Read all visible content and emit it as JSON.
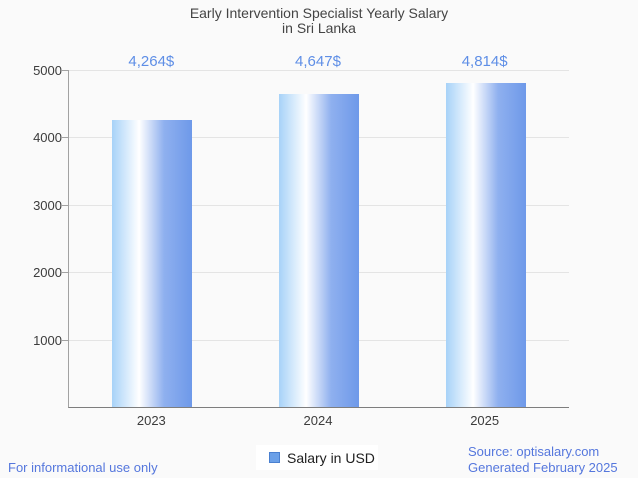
{
  "title": {
    "line1": "Early Intervention Specialist Yearly Salary",
    "line2": "in Sri Lanka"
  },
  "chart_data": {
    "type": "bar",
    "title": "Early Intervention Specialist Yearly Salary in Sri Lanka",
    "categories": [
      "2023",
      "2024",
      "2025"
    ],
    "values": [
      4264,
      4647,
      4814
    ],
    "value_labels": [
      "4,264$",
      "4,647$",
      "4,814$"
    ],
    "series_name": "Salary in USD",
    "xlabel": "",
    "ylabel": "",
    "ylim": [
      0,
      5000
    ],
    "yticks": [
      1000,
      2000,
      3000,
      4000,
      5000
    ],
    "grid": true,
    "legend_position": "bottom"
  },
  "legend": {
    "label": "Salary in USD",
    "swatch_color": "#6ba0e8"
  },
  "footer": {
    "left": "For informational use only",
    "source": "Source: optisalary.com",
    "generated": "Generated February 2025"
  },
  "colors": {
    "value_label_blue": "#5e8ee6",
    "footer_blue": "#5577dd",
    "bar_gradient_left": "#a7d2f8",
    "bar_gradient_mid": "#ffffff",
    "bar_gradient_right": "#6e99e9",
    "axis_text": "#3c3c3c",
    "title_text": "#444444",
    "grid_line": "#e4e4e4",
    "background": "#fafafa"
  }
}
